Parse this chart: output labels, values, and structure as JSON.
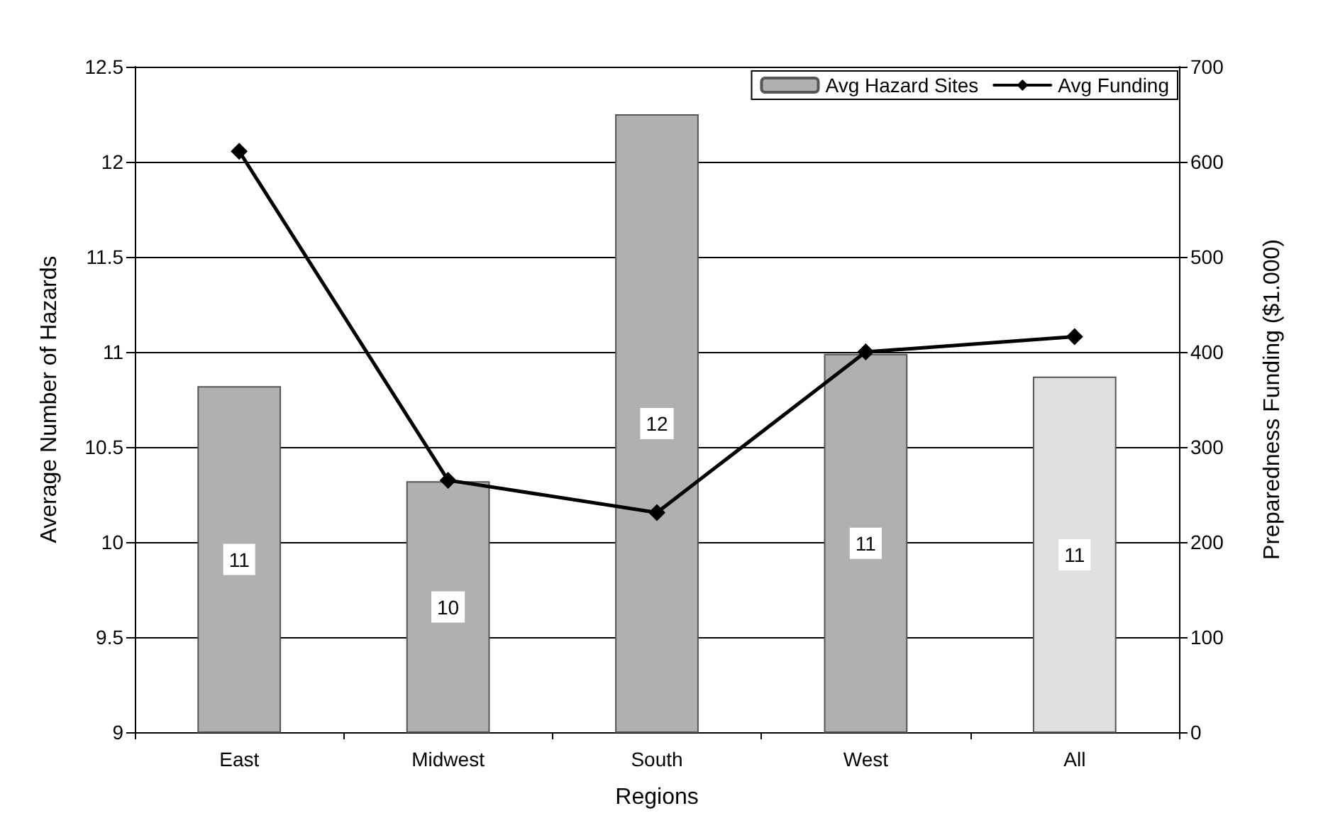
{
  "chart_data": {
    "type": "bar",
    "xlabel": "Regions",
    "ylabel": "Average Number of Hazards",
    "y2label": "Preparedness Funding ($1.000)",
    "categories": [
      "East",
      "Midwest",
      "South",
      "West",
      "All"
    ],
    "series": [
      {
        "name": "Avg Hazard Sites",
        "color": "#b0b0b0",
        "colors": [
          "#b0b0b0",
          "#b0b0b0",
          "#b0b0b0",
          "#b0b0b0",
          "#e0e0e0"
        ],
        "values": [
          10.82,
          10.32,
          12.25,
          10.99,
          10.87
        ],
        "value_labels": [
          "11",
          "10",
          "12",
          "11",
          "11"
        ]
      },
      {
        "name": "Avg Funding",
        "type": "line",
        "axis": "y2",
        "color": "#000000",
        "marker": "diamond",
        "line_style": "solid",
        "values": [
          611,
          265,
          231,
          400,
          416
        ]
      }
    ],
    "ylim": [
      9,
      12.5
    ],
    "yticks": [
      9,
      9.5,
      10,
      10.5,
      11,
      11.5,
      12,
      12.5
    ],
    "y2lim": [
      0,
      700
    ],
    "y2ticks": [
      0,
      100,
      200,
      300,
      400,
      500,
      600,
      700
    ],
    "grid": "y",
    "legend": "top right"
  }
}
